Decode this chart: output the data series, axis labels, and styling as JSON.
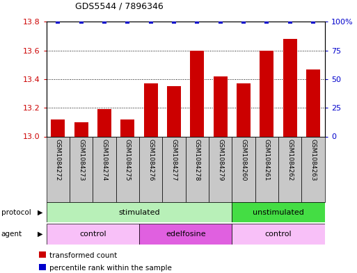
{
  "title": "GDS5544 / 7896346",
  "samples": [
    "GSM1084272",
    "GSM1084273",
    "GSM1084274",
    "GSM1084275",
    "GSM1084276",
    "GSM1084277",
    "GSM1084278",
    "GSM1084279",
    "GSM1084260",
    "GSM1084261",
    "GSM1084262",
    "GSM1084263"
  ],
  "bar_values": [
    13.12,
    13.1,
    13.19,
    13.12,
    13.37,
    13.35,
    13.6,
    13.42,
    13.37,
    13.6,
    13.68,
    13.47
  ],
  "percentile_values": [
    100,
    100,
    100,
    100,
    100,
    100,
    100,
    100,
    100,
    100,
    100,
    100
  ],
  "bar_color": "#cc0000",
  "percentile_color": "#0000cc",
  "ylim_left": [
    13.0,
    13.8
  ],
  "ylim_right": [
    0,
    100
  ],
  "yticks_left": [
    13.0,
    13.2,
    13.4,
    13.6,
    13.8
  ],
  "yticks_right": [
    0,
    25,
    50,
    75,
    100
  ],
  "protocol_groups": [
    {
      "label": "stimulated",
      "start": 0,
      "end": 7,
      "color": "#b8f0b8"
    },
    {
      "label": "unstimulated",
      "start": 8,
      "end": 11,
      "color": "#44dd44"
    }
  ],
  "agent_groups": [
    {
      "label": "control",
      "start": 0,
      "end": 3,
      "color": "#f8c0f8"
    },
    {
      "label": "edelfosine",
      "start": 4,
      "end": 7,
      "color": "#e060e0"
    },
    {
      "label": "control",
      "start": 8,
      "end": 11,
      "color": "#f8c0f8"
    }
  ],
  "legend_items": [
    {
      "label": "transformed count",
      "color": "#cc0000"
    },
    {
      "label": "percentile rank within the sample",
      "color": "#0000cc"
    }
  ],
  "bar_width": 0.6,
  "sample_box_color": "#c8c8c8",
  "grid_linestyle": ":"
}
